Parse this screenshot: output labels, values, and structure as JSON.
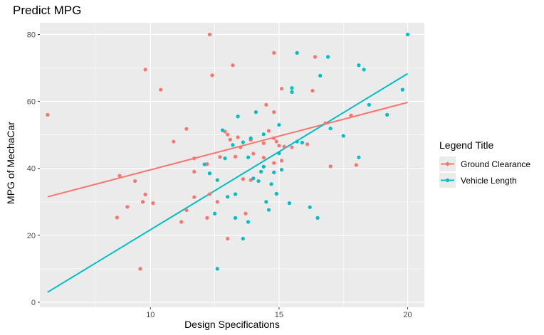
{
  "chart_data": {
    "type": "scatter",
    "title": "Predict MPG",
    "xlabel": "Design Specifications",
    "ylabel": "MPG of MechaCar",
    "xlim": [
      5.7,
      20.65
    ],
    "ylim": [
      -1.5,
      83.5
    ],
    "xticks": [
      10,
      15,
      20
    ],
    "yticks": [
      0,
      20,
      40,
      60,
      80
    ],
    "xtick_labels": [
      "10",
      "15",
      "20"
    ],
    "ytick_labels": [
      "0",
      "20",
      "40",
      "60",
      "80"
    ],
    "grid": true,
    "legend": {
      "title": "Legend Title",
      "position": "right"
    },
    "series": [
      {
        "name": "Ground Clearance",
        "color": "#F8766D",
        "fit_line": {
          "x": [
            6.0,
            20.0
          ],
          "y": [
            31.5,
            59.7
          ]
        },
        "points": [
          [
            6.0,
            56.0
          ],
          [
            8.8,
            37.8
          ],
          [
            8.7,
            25.3
          ],
          [
            9.1,
            28.5
          ],
          [
            9.4,
            36.2
          ],
          [
            9.6,
            10.0
          ],
          [
            9.8,
            69.5
          ],
          [
            9.7,
            30.0
          ],
          [
            9.8,
            32.2
          ],
          [
            10.1,
            29.6
          ],
          [
            10.4,
            63.5
          ],
          [
            10.9,
            48.0
          ],
          [
            11.2,
            24.0
          ],
          [
            11.4,
            51.8
          ],
          [
            11.4,
            27.5
          ],
          [
            11.7,
            43.0
          ],
          [
            11.7,
            39.0
          ],
          [
            11.7,
            31.4
          ],
          [
            12.2,
            41.3
          ],
          [
            12.3,
            80.0
          ],
          [
            12.2,
            25.2
          ],
          [
            12.4,
            67.8
          ],
          [
            12.3,
            32.3
          ],
          [
            12.6,
            30.0
          ],
          [
            12.7,
            43.4
          ],
          [
            12.9,
            51.0
          ],
          [
            13.0,
            19.0
          ],
          [
            13.0,
            50.1
          ],
          [
            13.1,
            48.6
          ],
          [
            13.2,
            70.8
          ],
          [
            13.3,
            43.5
          ],
          [
            13.4,
            49.3
          ],
          [
            13.5,
            46.3
          ],
          [
            13.6,
            36.8
          ],
          [
            13.7,
            26.5
          ],
          [
            13.9,
            36.5
          ],
          [
            13.9,
            48.5
          ],
          [
            14.0,
            44.4
          ],
          [
            14.4,
            47.5
          ],
          [
            14.4,
            43.2
          ],
          [
            14.5,
            59.0
          ],
          [
            14.6,
            51.2
          ],
          [
            14.8,
            49.0
          ],
          [
            14.8,
            56.8
          ],
          [
            14.8,
            74.5
          ],
          [
            14.8,
            41.6
          ],
          [
            14.9,
            48.0
          ],
          [
            15.0,
            46.8
          ],
          [
            15.1,
            63.8
          ],
          [
            15.1,
            42.3
          ],
          [
            15.2,
            46.5
          ],
          [
            15.5,
            46.3
          ],
          [
            16.1,
            47.2
          ],
          [
            16.3,
            63.2
          ],
          [
            16.4,
            73.3
          ],
          [
            16.8,
            53.5
          ],
          [
            17.0,
            40.6
          ],
          [
            17.8,
            55.8
          ],
          [
            18.0,
            41.0
          ]
        ]
      },
      {
        "name": "Vehicle Length",
        "color": "#00BFC4",
        "fit_line": {
          "x": [
            6.0,
            20.0
          ],
          "y": [
            3.0,
            68.3
          ]
        },
        "points": [
          [
            12.6,
            10.0
          ],
          [
            12.1,
            41.2
          ],
          [
            12.3,
            38.5
          ],
          [
            12.5,
            26.5
          ],
          [
            12.6,
            36.5
          ],
          [
            12.8,
            51.4
          ],
          [
            12.9,
            43.0
          ],
          [
            13.0,
            31.5
          ],
          [
            13.2,
            47.0
          ],
          [
            13.3,
            25.2
          ],
          [
            13.3,
            32.3
          ],
          [
            13.4,
            55.5
          ],
          [
            13.6,
            19.0
          ],
          [
            13.6,
            47.8
          ],
          [
            13.8,
            24.0
          ],
          [
            13.8,
            43.3
          ],
          [
            13.9,
            49.0
          ],
          [
            14.0,
            37.0
          ],
          [
            14.1,
            56.8
          ],
          [
            14.2,
            36.2
          ],
          [
            14.3,
            39.0
          ],
          [
            14.4,
            50.2
          ],
          [
            14.4,
            40.5
          ],
          [
            14.5,
            30.0
          ],
          [
            14.6,
            27.6
          ],
          [
            14.7,
            35.3
          ],
          [
            14.8,
            38.8
          ],
          [
            14.9,
            32.4
          ],
          [
            15.0,
            44.5
          ],
          [
            15.0,
            53.0
          ],
          [
            15.1,
            39.6
          ],
          [
            15.4,
            29.6
          ],
          [
            15.5,
            64.0
          ],
          [
            15.5,
            62.8
          ],
          [
            15.7,
            74.5
          ],
          [
            15.7,
            48.0
          ],
          [
            15.9,
            47.7
          ],
          [
            16.2,
            28.4
          ],
          [
            16.5,
            25.2
          ],
          [
            16.6,
            67.7
          ],
          [
            16.9,
            73.3
          ],
          [
            17.0,
            51.9
          ],
          [
            17.5,
            49.7
          ],
          [
            18.1,
            70.8
          ],
          [
            18.1,
            43.3
          ],
          [
            18.3,
            69.5
          ],
          [
            18.5,
            59.0
          ],
          [
            19.2,
            56.0
          ],
          [
            19.8,
            63.5
          ],
          [
            20.0,
            80.0
          ]
        ]
      }
    ]
  }
}
